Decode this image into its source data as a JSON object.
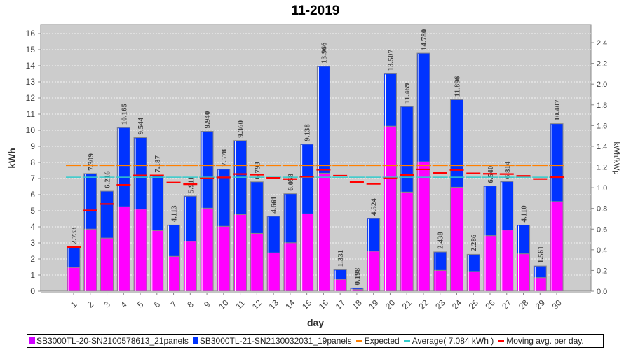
{
  "chart_data": {
    "type": "bar",
    "title": "11-2019",
    "xlabel": "day",
    "ylabel": "kWh",
    "y2label": "kWh/kWp",
    "ylim": [
      0,
      16.5
    ],
    "y2lim": [
      0,
      2.5
    ],
    "yticks": [
      0,
      1,
      2,
      3,
      4,
      5,
      6,
      7,
      8,
      9,
      10,
      11,
      12,
      13,
      14,
      15,
      16
    ],
    "y2ticks": [
      "0.0",
      "0.2",
      "0.4",
      "0.6",
      "0.8",
      "1.0",
      "1.2",
      "1.4",
      "1.6",
      "1.8",
      "2.0",
      "2.2",
      "2.4"
    ],
    "categories": [
      "1",
      "2",
      "3",
      "4",
      "5",
      "6",
      "7",
      "8",
      "9",
      "10",
      "11",
      "12",
      "13",
      "14",
      "15",
      "16",
      "17",
      "18",
      "19",
      "20",
      "21",
      "22",
      "23",
      "24",
      "25",
      "26",
      "27",
      "28",
      "29",
      "30"
    ],
    "series": [
      {
        "name": "SB3000TL-20-SN2100578613_21panels",
        "color": "#ff00ff",
        "values": [
          1.47,
          3.86,
          3.3,
          5.25,
          5.1,
          3.77,
          2.16,
          3.1,
          5.16,
          4.03,
          4.77,
          3.59,
          2.38,
          3.01,
          4.81,
          7.33,
          0.73,
          0.12,
          2.48,
          10.25,
          6.16,
          8.04,
          1.29,
          6.46,
          1.22,
          3.45,
          3.8,
          2.32,
          0.84,
          5.57
        ]
      },
      {
        "name": "SB3000TL-21-SN2130032031_19panels",
        "color": "#0033ff",
        "values": [
          1.263,
          3.449,
          2.916,
          4.915,
          4.444,
          3.417,
          1.953,
          2.811,
          4.78,
          3.548,
          4.59,
          3.203,
          2.281,
          3.048,
          4.328,
          6.636,
          0.601,
          0.078,
          2.044,
          3.257,
          5.309,
          6.74,
          1.148,
          5.436,
          1.066,
          3.09,
          3.014,
          1.79,
          0.721,
          4.837
        ]
      }
    ],
    "totals": [
      "2.733",
      "7.309",
      "6.216",
      "10.165",
      "9.544",
      "7.187",
      "4.113",
      "5.911",
      "9.940",
      "7.578",
      "9.360",
      "6.793",
      "4.661",
      "6.058",
      "9.138",
      "13.966",
      "1.331",
      "0.198",
      "4.524",
      "13.507",
      "11.469",
      "14.780",
      "2.438",
      "11.896",
      "2.286",
      "6.540",
      "6.814",
      "4.110",
      "1.561",
      "10.407"
    ],
    "moving_avg": [
      2.733,
      5.021,
      5.419,
      6.606,
      7.193,
      7.192,
      6.752,
      6.647,
      7.013,
      7.07,
      7.278,
      7.237,
      7.039,
      6.969,
      7.114,
      7.542,
      7.177,
      6.789,
      6.67,
      7.012,
      7.224,
      7.567,
      7.344,
      7.534,
      7.324,
      7.294,
      7.276,
      7.163,
      6.97,
      7.084
    ],
    "expected": 7.81,
    "average": 7.084,
    "legend": {
      "s1": "SB3000TL-20-SN2100578613_21panels",
      "s2": "SB3000TL-21-SN2130032031_19panels",
      "expected": "Expected",
      "average": "Average( 7.084 kWh )",
      "moving": "Moving avg. per day."
    },
    "colors": {
      "expected": "#ff8000",
      "average": "#33cccc",
      "moving": "#ff0000",
      "plot_bg": "#cccccc"
    }
  }
}
